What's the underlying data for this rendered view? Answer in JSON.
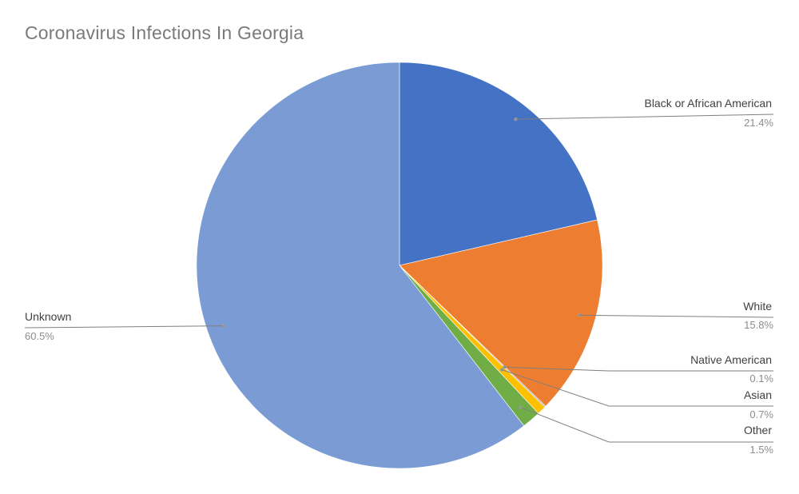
{
  "chart_data": {
    "type": "pie",
    "title": "Coronavirus Infections In Georgia",
    "slices": [
      {
        "label": "Black or African American",
        "value": 21.4,
        "display": "21.4%",
        "color": "#4472C4"
      },
      {
        "label": "White",
        "value": 15.8,
        "display": "15.8%",
        "color": "#ED7D31"
      },
      {
        "label": "Native American",
        "value": 0.1,
        "display": "0.1%",
        "color": "#A5A5A5"
      },
      {
        "label": "Asian",
        "value": 0.7,
        "display": "0.7%",
        "color": "#FFC000"
      },
      {
        "label": "Other",
        "value": 1.5,
        "display": "1.5%",
        "color": "#70AD47"
      },
      {
        "label": "Unknown",
        "value": 60.5,
        "display": "60.5%",
        "color": "#7B9BD5"
      }
    ],
    "start_angle": "12 o'clock",
    "direction": "clockwise",
    "legend": "none (data labels with leader lines)"
  }
}
